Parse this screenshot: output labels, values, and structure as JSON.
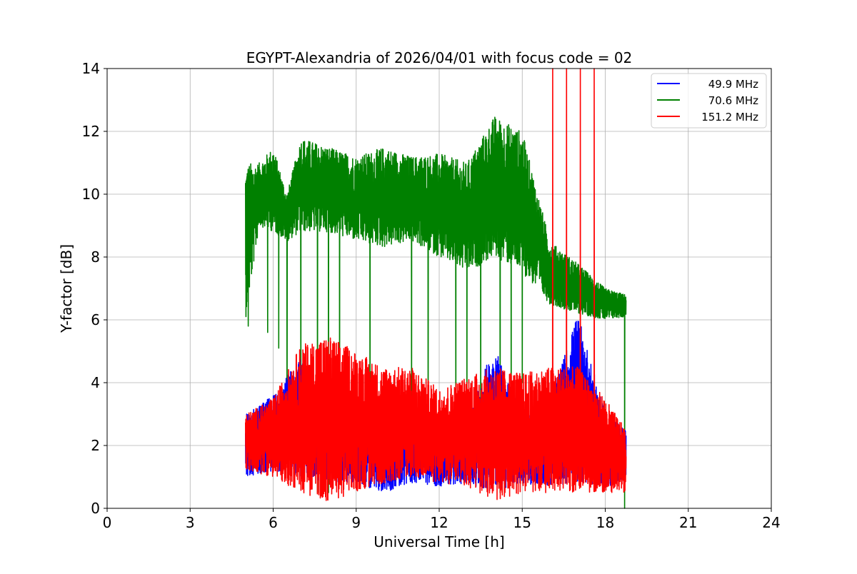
{
  "chart_data": {
    "type": "line",
    "title": "EGYPT-Alexandria of 2026/04/01 with focus code = 02",
    "xlabel": "Universal Time [h]",
    "ylabel": "Y-factor [dB]",
    "xlim": [
      0,
      24
    ],
    "ylim": [
      0,
      14
    ],
    "xticks": [
      "0",
      "3",
      "6",
      "9",
      "12",
      "15",
      "18",
      "21",
      "24"
    ],
    "yticks": [
      "0",
      "2",
      "4",
      "6",
      "8",
      "10",
      "12",
      "14"
    ],
    "grid": true,
    "legend_position": "top-right",
    "x_range_of_data": [
      5.0,
      18.75
    ],
    "series": [
      {
        "name": "49.9 MHz",
        "color": "#0000ff",
        "envelope": [
          {
            "x": 5.0,
            "low": 1.0,
            "high": 3.0
          },
          {
            "x": 6.0,
            "low": 1.2,
            "high": 3.6
          },
          {
            "x": 7.0,
            "low": 1.0,
            "high": 4.8
          },
          {
            "x": 8.0,
            "low": 0.8,
            "high": 3.0
          },
          {
            "x": 9.0,
            "low": 0.8,
            "high": 3.0
          },
          {
            "x": 10.0,
            "low": 0.5,
            "high": 3.0
          },
          {
            "x": 11.0,
            "low": 0.8,
            "high": 3.0
          },
          {
            "x": 12.0,
            "low": 0.7,
            "high": 3.0
          },
          {
            "x": 13.0,
            "low": 0.8,
            "high": 3.0
          },
          {
            "x": 14.0,
            "low": 0.5,
            "high": 5.2
          },
          {
            "x": 15.0,
            "low": 0.8,
            "high": 3.0
          },
          {
            "x": 16.0,
            "low": 0.7,
            "high": 3.4
          },
          {
            "x": 17.0,
            "low": 0.8,
            "high": 6.2
          },
          {
            "x": 18.0,
            "low": 0.7,
            "high": 3.0
          },
          {
            "x": 18.75,
            "low": 0.8,
            "high": 2.5
          }
        ]
      },
      {
        "name": "70.6 MHz",
        "color": "#008000",
        "envelope": [
          {
            "x": 5.0,
            "low": 6.0,
            "high": 11.0
          },
          {
            "x": 5.5,
            "low": 9.0,
            "high": 11.0
          },
          {
            "x": 6.0,
            "low": 8.8,
            "high": 11.5
          },
          {
            "x": 6.5,
            "low": 8.5,
            "high": 10.0
          },
          {
            "x": 7.0,
            "low": 8.8,
            "high": 11.8
          },
          {
            "x": 8.0,
            "low": 8.8,
            "high": 11.5
          },
          {
            "x": 9.0,
            "low": 8.5,
            "high": 11.2
          },
          {
            "x": 10.0,
            "low": 8.3,
            "high": 11.5
          },
          {
            "x": 11.0,
            "low": 8.5,
            "high": 11.2
          },
          {
            "x": 12.0,
            "low": 8.0,
            "high": 11.3
          },
          {
            "x": 13.0,
            "low": 7.5,
            "high": 11.0
          },
          {
            "x": 14.0,
            "low": 8.0,
            "high": 12.5
          },
          {
            "x": 15.0,
            "low": 7.5,
            "high": 12.0
          },
          {
            "x": 16.0,
            "low": 6.5,
            "high": 8.5
          },
          {
            "x": 17.0,
            "low": 6.2,
            "high": 7.8
          },
          {
            "x": 18.0,
            "low": 6.0,
            "high": 7.0
          },
          {
            "x": 18.75,
            "low": 6.1,
            "high": 6.8
          }
        ],
        "dips_to": [
          {
            "x": 5.1,
            "y": 5.8
          },
          {
            "x": 5.8,
            "y": 5.6
          },
          {
            "x": 6.2,
            "y": 5.1
          },
          {
            "x": 6.5,
            "y": 1.5
          },
          {
            "x": 7.0,
            "y": 2.0
          },
          {
            "x": 7.6,
            "y": 0.5
          },
          {
            "x": 8.0,
            "y": 0.5
          },
          {
            "x": 8.4,
            "y": 1.5
          },
          {
            "x": 9.5,
            "y": 1.5
          },
          {
            "x": 11.0,
            "y": 2.5
          },
          {
            "x": 11.6,
            "y": 2.0
          },
          {
            "x": 12.6,
            "y": 2.5
          },
          {
            "x": 13.0,
            "y": 2.5
          },
          {
            "x": 13.5,
            "y": 1.5
          },
          {
            "x": 14.2,
            "y": 0.5
          },
          {
            "x": 14.6,
            "y": 2.0
          },
          {
            "x": 15.0,
            "y": 4.0
          },
          {
            "x": 18.7,
            "y": 0.0
          }
        ]
      },
      {
        "name": "151.2 MHz",
        "color": "#ff0000",
        "envelope": [
          {
            "x": 5.0,
            "low": 1.2,
            "high": 3.0
          },
          {
            "x": 6.0,
            "low": 1.0,
            "high": 3.5
          },
          {
            "x": 7.0,
            "low": 0.5,
            "high": 5.2
          },
          {
            "x": 8.0,
            "low": 0.2,
            "high": 5.5
          },
          {
            "x": 9.0,
            "low": 0.5,
            "high": 5.0
          },
          {
            "x": 10.0,
            "low": 0.8,
            "high": 4.5
          },
          {
            "x": 11.0,
            "low": 1.0,
            "high": 4.5
          },
          {
            "x": 12.0,
            "low": 0.8,
            "high": 3.8
          },
          {
            "x": 13.0,
            "low": 0.7,
            "high": 4.2
          },
          {
            "x": 14.0,
            "low": 0.2,
            "high": 4.5
          },
          {
            "x": 15.0,
            "low": 0.5,
            "high": 4.3
          },
          {
            "x": 16.0,
            "low": 0.5,
            "high": 4.5
          },
          {
            "x": 17.0,
            "low": 0.5,
            "high": 4.5
          },
          {
            "x": 18.0,
            "low": 0.5,
            "high": 3.5
          },
          {
            "x": 18.75,
            "low": 0.5,
            "high": 2.5
          }
        ],
        "spikes_to": [
          {
            "x": 16.1,
            "y": 14.0
          },
          {
            "x": 16.6,
            "y": 14.0
          },
          {
            "x": 17.1,
            "y": 14.0
          },
          {
            "x": 17.6,
            "y": 14.0
          }
        ]
      }
    ]
  }
}
